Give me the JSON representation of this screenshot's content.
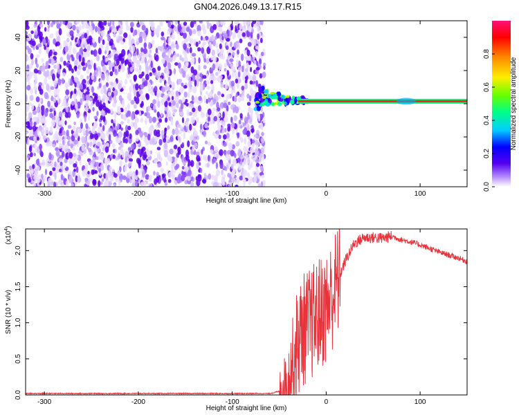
{
  "title": "GN04.2026.049.13.17.R15",
  "chart_data": [
    {
      "type": "heatmap",
      "xlabel": "Height of straight line (km)",
      "ylabel": "Frequency (Hz)",
      "xlim": [
        -320,
        150
      ],
      "ylim": [
        -50,
        50
      ],
      "x_ticks": [
        "-300",
        "-200",
        "-100",
        "0",
        "100"
      ],
      "y_ticks": [
        "-40",
        "-20",
        "0",
        "20",
        "40"
      ],
      "noise_region_x": [
        -320,
        -70
      ],
      "signal_line_x_start": -75,
      "signal_line_freq_hz": 1.5,
      "colorbar": {
        "label": "Normalized spectral amplitude",
        "range": [
          0,
          1
        ],
        "ticks": [
          "0.0",
          "0.2",
          "0.4",
          "0.6",
          "0.8"
        ],
        "colors": [
          "#ffffff",
          "#9966ff",
          "#5500ee",
          "#0000ff",
          "#00ddff",
          "#00ff66",
          "#aaff00",
          "#ffdd00",
          "#ff7700",
          "#ff0000",
          "#ff1177"
        ]
      }
    },
    {
      "type": "line",
      "xlabel": "Height of straight line (km)",
      "ylabel": "SNR (10 * v/v)",
      "yscale_label": "(x10",
      "yscale_exp": "4",
      "xlim": [
        -320,
        150
      ],
      "ylim": [
        0,
        2.3
      ],
      "x_ticks": [
        "-300",
        "-200",
        "-100",
        "0",
        "100"
      ],
      "y_ticks": [
        "0.0",
        "0.5",
        "1.0",
        "1.5",
        "2.0"
      ],
      "color": "#e8333a",
      "series": [
        {
          "x": [
            -320,
            -100,
            -60,
            -50,
            -40,
            -35,
            -30,
            -25,
            -20,
            -15,
            -10,
            0,
            10,
            20,
            30,
            40,
            50,
            60,
            70,
            80,
            90,
            100,
            110,
            120,
            130,
            140,
            150
          ],
          "values": [
            0.02,
            0.02,
            0.02,
            0.05,
            0.25,
            0.5,
            0.75,
            0.9,
            0.95,
            1.0,
            1.1,
            1.2,
            1.5,
            1.85,
            2.1,
            2.18,
            2.18,
            2.17,
            2.2,
            2.15,
            2.12,
            2.08,
            2.03,
            1.98,
            1.94,
            1.9,
            1.85
          ]
        }
      ]
    }
  ]
}
